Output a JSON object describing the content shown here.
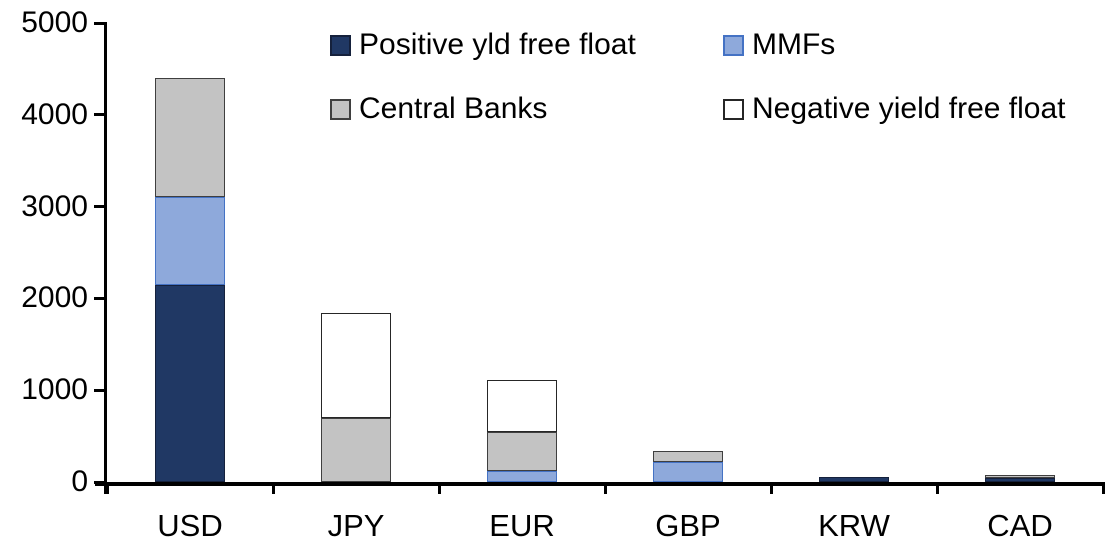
{
  "chart_data": {
    "type": "bar",
    "stacked": true,
    "title": "",
    "xlabel": "",
    "ylabel": "",
    "categories": [
      "USD",
      "JPY",
      "EUR",
      "GBP",
      "KRW",
      "CAD"
    ],
    "series": [
      {
        "name": "Positive yld free float",
        "color": "#203864",
        "border_color": "#15213c",
        "values": [
          2150,
          0,
          0,
          0,
          50,
          45
        ]
      },
      {
        "name": "MMFs",
        "color": "#8EA9DB",
        "border_color": "#4472C4",
        "values": [
          950,
          0,
          120,
          220,
          0,
          0
        ]
      },
      {
        "name": "Central Banks",
        "color": "#C3C3C3",
        "border_color": "#3F3F3F",
        "values": [
          1300,
          700,
          425,
          120,
          0,
          30
        ]
      },
      {
        "name": "Negative yield free float",
        "color": "#FFFFFF",
        "border_color": "#262626",
        "values": [
          0,
          1140,
          565,
          0,
          0,
          0
        ]
      }
    ],
    "totals": [
      4400,
      1840,
      1110,
      340,
      50,
      75
    ],
    "ylim": [
      0,
      5000
    ],
    "ytick_interval": 1000,
    "ytick_labels": [
      "0",
      "1000",
      "2000",
      "3000",
      "4000",
      "5000"
    ],
    "grid": false,
    "legend_position": "top",
    "legend_rows": [
      [
        "Positive yld free float",
        "MMFs"
      ],
      [
        "Central Banks",
        "Negative yield free float"
      ]
    ],
    "axis_color": "#000000",
    "text_color": "#000000"
  }
}
